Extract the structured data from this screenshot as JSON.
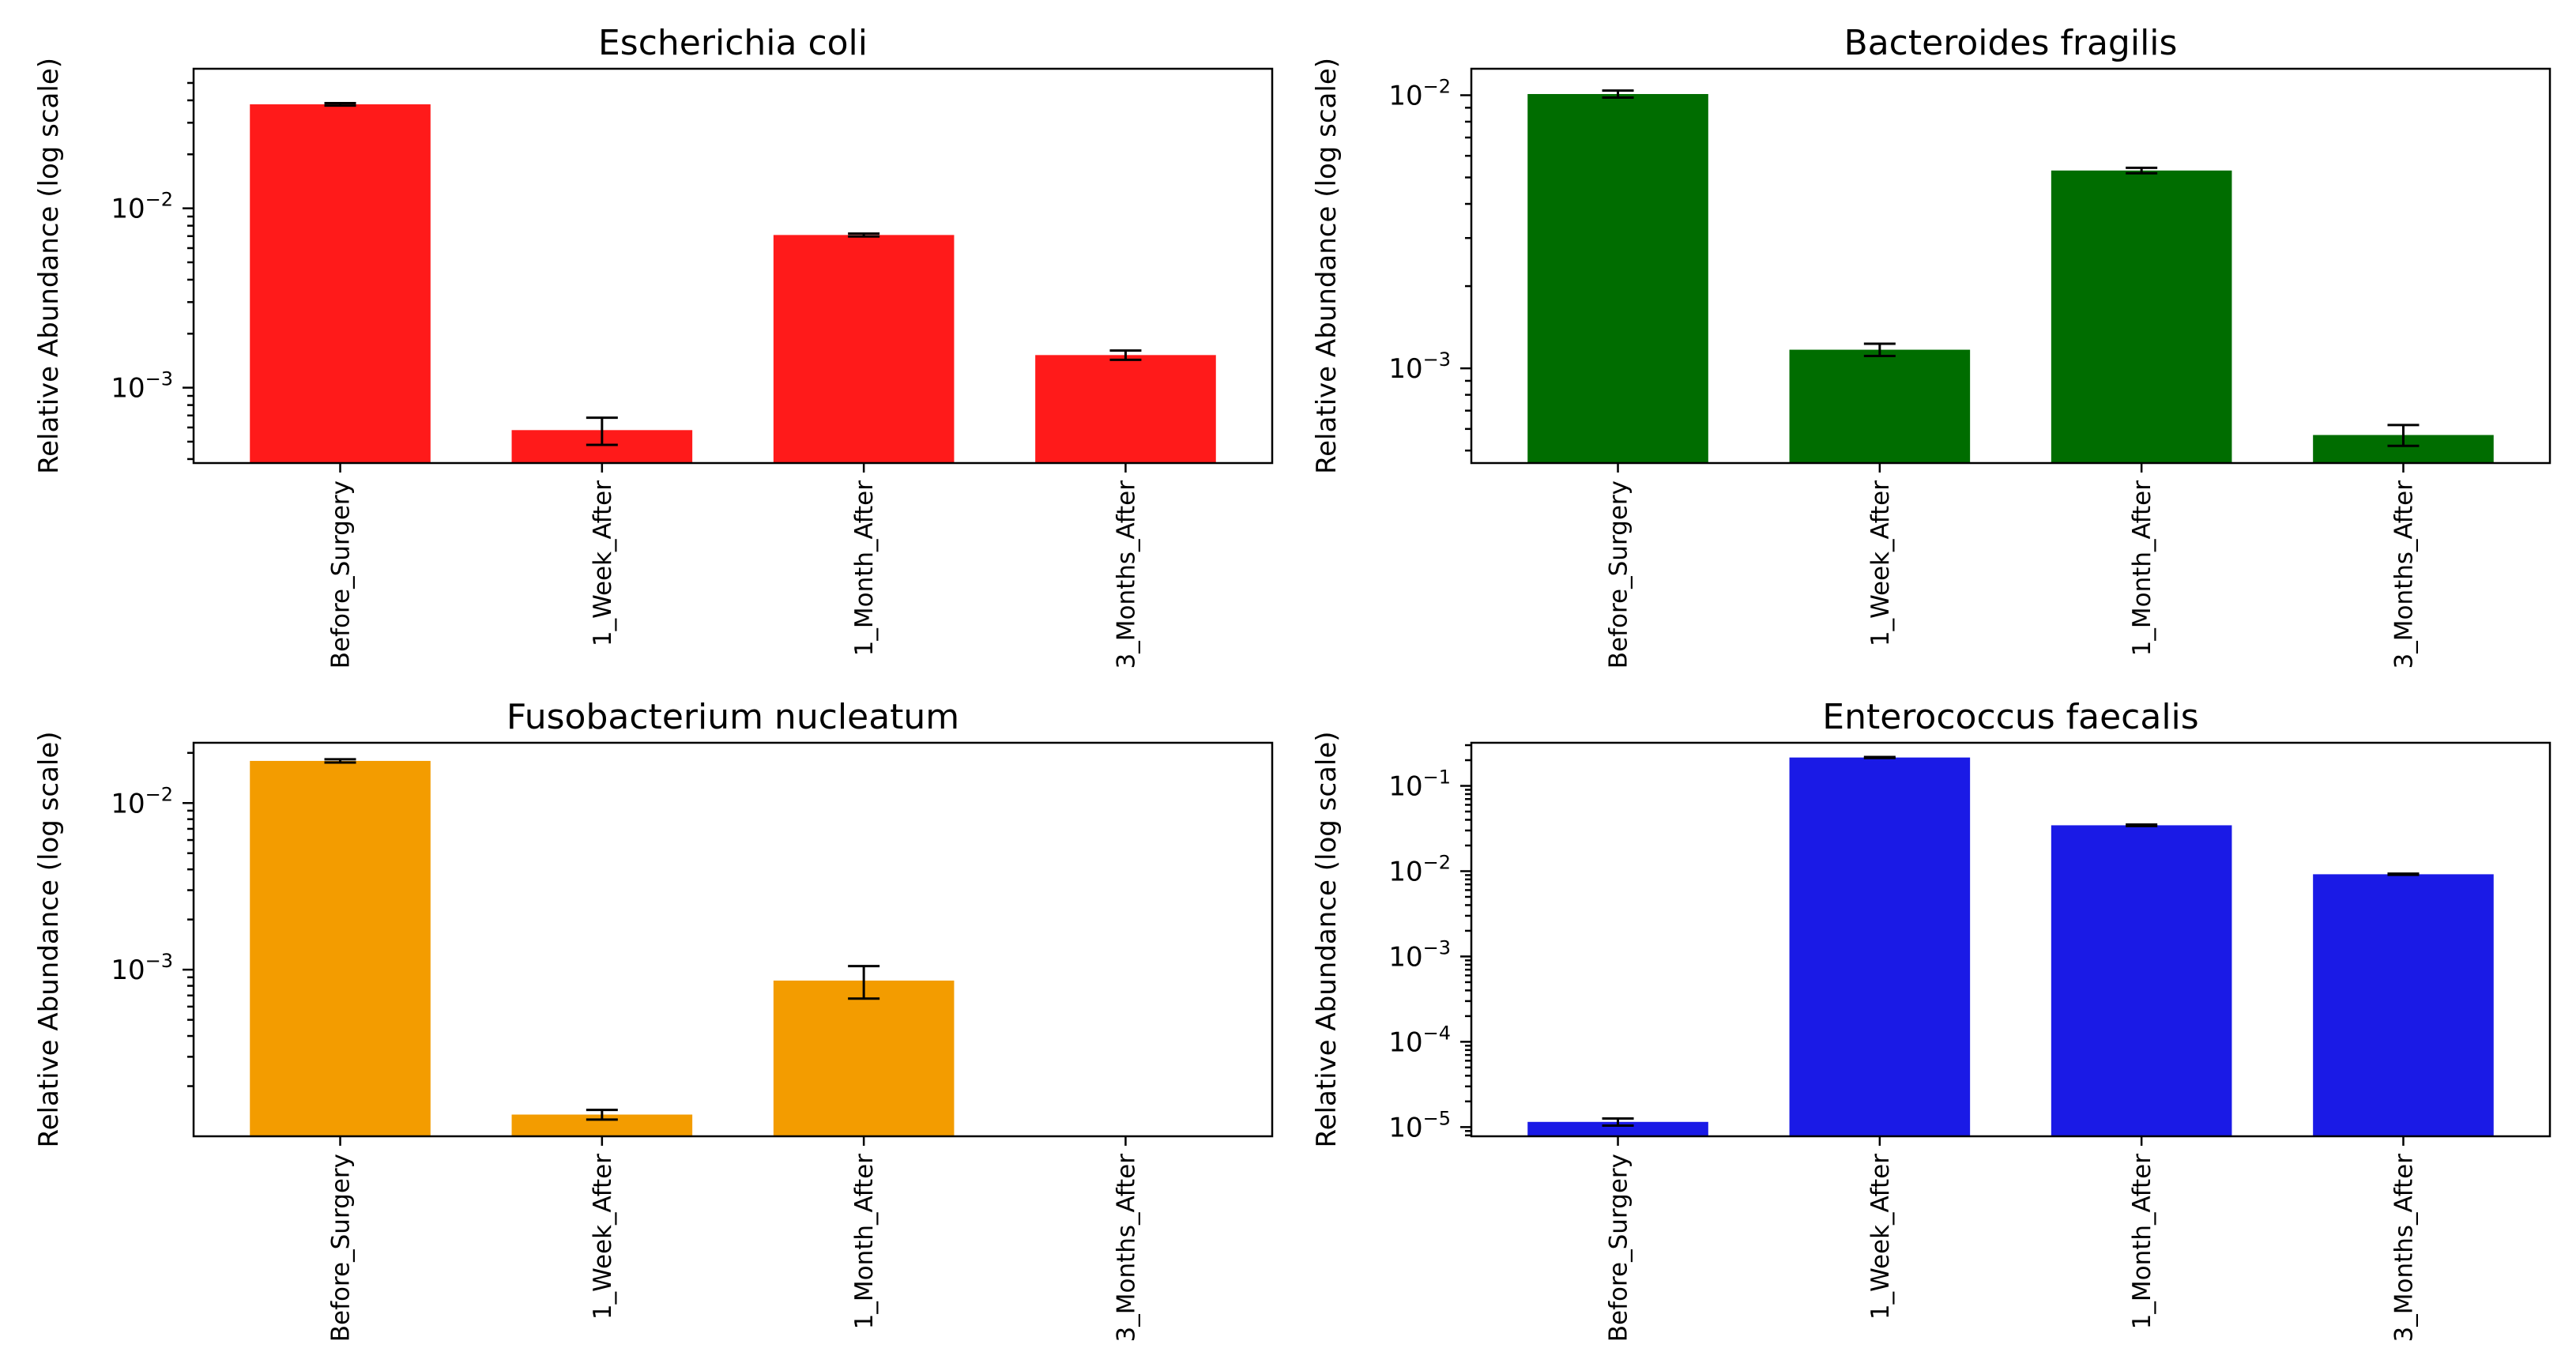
{
  "figure": {
    "layout": "2x2 grid of bar charts"
  },
  "chart_data": [
    {
      "type": "bar",
      "title": "Escherichia coli",
      "xlabel": "",
      "ylabel": "Relative Abundance (log scale)",
      "yscale": "log",
      "ylim": [
        0.00038,
        0.06
      ],
      "yticks": [
        {
          "value": 0.001,
          "base": "10",
          "exp": "−3"
        },
        {
          "value": 0.01,
          "base": "10",
          "exp": "−2"
        }
      ],
      "color": "#ff1a1a",
      "categories": [
        "Before_Surgery",
        "1_Week_After",
        "1_Month_After",
        "3_Months_After"
      ],
      "values": [
        0.038,
        0.00058,
        0.0071,
        0.00152
      ],
      "errors": [
        0.0006,
        0.0001,
        0.00013,
        9e-05
      ]
    },
    {
      "type": "bar",
      "title": "Bacteroides fragilis",
      "xlabel": "",
      "ylabel": "Relative Abundance (log scale)",
      "yscale": "log",
      "ylim": [
        0.00045,
        0.0125
      ],
      "yticks": [
        {
          "value": 0.001,
          "base": "10",
          "exp": "−3"
        },
        {
          "value": 0.01,
          "base": "10",
          "exp": "−2"
        }
      ],
      "color": "#006d00",
      "categories": [
        "Before_Surgery",
        "1_Week_After",
        "1_Month_After",
        "3_Months_After"
      ],
      "values": [
        0.0101,
        0.00117,
        0.0053,
        0.00057
      ],
      "errors": [
        0.0003,
        6e-05,
        0.00012,
        5e-05
      ]
    },
    {
      "type": "bar",
      "title": "Fusobacterium nucleatum",
      "xlabel": "",
      "ylabel": "Relative Abundance (log scale)",
      "yscale": "log",
      "ylim": [
        0.0001,
        0.023
      ],
      "yticks": [
        {
          "value": 0.001,
          "base": "10",
          "exp": "−3"
        },
        {
          "value": 0.01,
          "base": "10",
          "exp": "−2"
        }
      ],
      "color": "#f39c00",
      "categories": [
        "Before_Surgery",
        "1_Week_After",
        "1_Month_After",
        "3_Months_After"
      ],
      "values": [
        0.0179,
        0.000135,
        0.00086,
        null
      ],
      "errors": [
        0.0004,
        9e-06,
        0.00019,
        null
      ]
    },
    {
      "type": "bar",
      "title": "Enterococcus faecalis",
      "xlabel": "",
      "ylabel": "Relative Abundance (log scale)",
      "yscale": "log",
      "ylim": [
        7.8e-06,
        0.32
      ],
      "yticks": [
        {
          "value": 1e-05,
          "base": "10",
          "exp": "−5"
        },
        {
          "value": 0.0001,
          "base": "10",
          "exp": "−4"
        },
        {
          "value": 0.001,
          "base": "10",
          "exp": "−3"
        },
        {
          "value": 0.01,
          "base": "10",
          "exp": "−2"
        },
        {
          "value": 0.1,
          "base": "10",
          "exp": "−1"
        }
      ],
      "color": "#1a1ae6",
      "categories": [
        "Before_Surgery",
        "1_Week_After",
        "1_Month_After",
        "3_Months_After"
      ],
      "values": [
        1.15e-05,
        0.215,
        0.0345,
        0.0092
      ],
      "errors": [
        1.1e-06,
        0.003,
        0.0007,
        0.00015
      ]
    }
  ]
}
